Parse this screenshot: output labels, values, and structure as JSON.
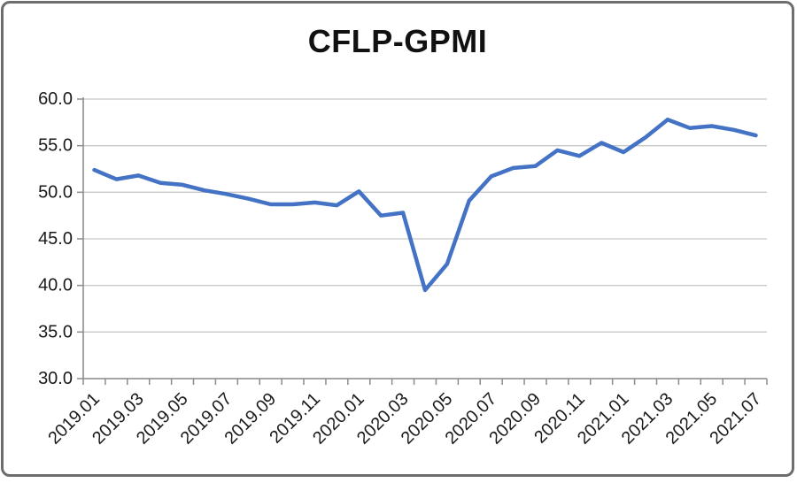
{
  "chart_data": {
    "type": "line",
    "title": "CFLP-GPMI",
    "series_name": "CFLP-GPMI",
    "categories": [
      "2019.01",
      "2019.02",
      "2019.03",
      "2019.04",
      "2019.05",
      "2019.06",
      "2019.07",
      "2019.08",
      "2019.09",
      "2019.10",
      "2019.11",
      "2019.12",
      "2020.01",
      "2020.02",
      "2020.03",
      "2020.04",
      "2020.05",
      "2020.06",
      "2020.07",
      "2020.08",
      "2020.09",
      "2020.10",
      "2020.11",
      "2020.12",
      "2021.01",
      "2021.02",
      "2021.03",
      "2021.04",
      "2021.05",
      "2021.06",
      "2021.07"
    ],
    "values": [
      52.4,
      51.4,
      51.8,
      51.0,
      50.8,
      50.2,
      49.8,
      49.3,
      48.7,
      48.7,
      48.9,
      48.6,
      50.1,
      47.5,
      47.8,
      39.5,
      42.3,
      49.1,
      51.7,
      52.6,
      52.8,
      54.5,
      53.9,
      55.3,
      54.3,
      55.9,
      57.8,
      56.9,
      57.1,
      56.7,
      56.1
    ],
    "ylim": [
      30,
      60
    ],
    "ytick_step": 5,
    "ytick_labels": [
      "60.0",
      "55.0",
      "50.0",
      "45.0",
      "40.0",
      "35.0",
      "30.0"
    ],
    "xtick_labels": [
      "2019.01",
      "2019.03",
      "2019.05",
      "2019.07",
      "2019.09",
      "2019.11",
      "2020.01",
      "2020.03",
      "2020.05",
      "2020.07",
      "2020.09",
      "2020.11",
      "2021.01",
      "2021.03",
      "2021.05",
      "2021.07"
    ],
    "xlabel": "",
    "ylabel": "",
    "grid": "horizontal",
    "legend": "none",
    "line_color": "#4472C4",
    "axis_color": "#8C8C8C",
    "gridline_color": "#C8C8C8",
    "text_color": "#1A1A1A"
  }
}
